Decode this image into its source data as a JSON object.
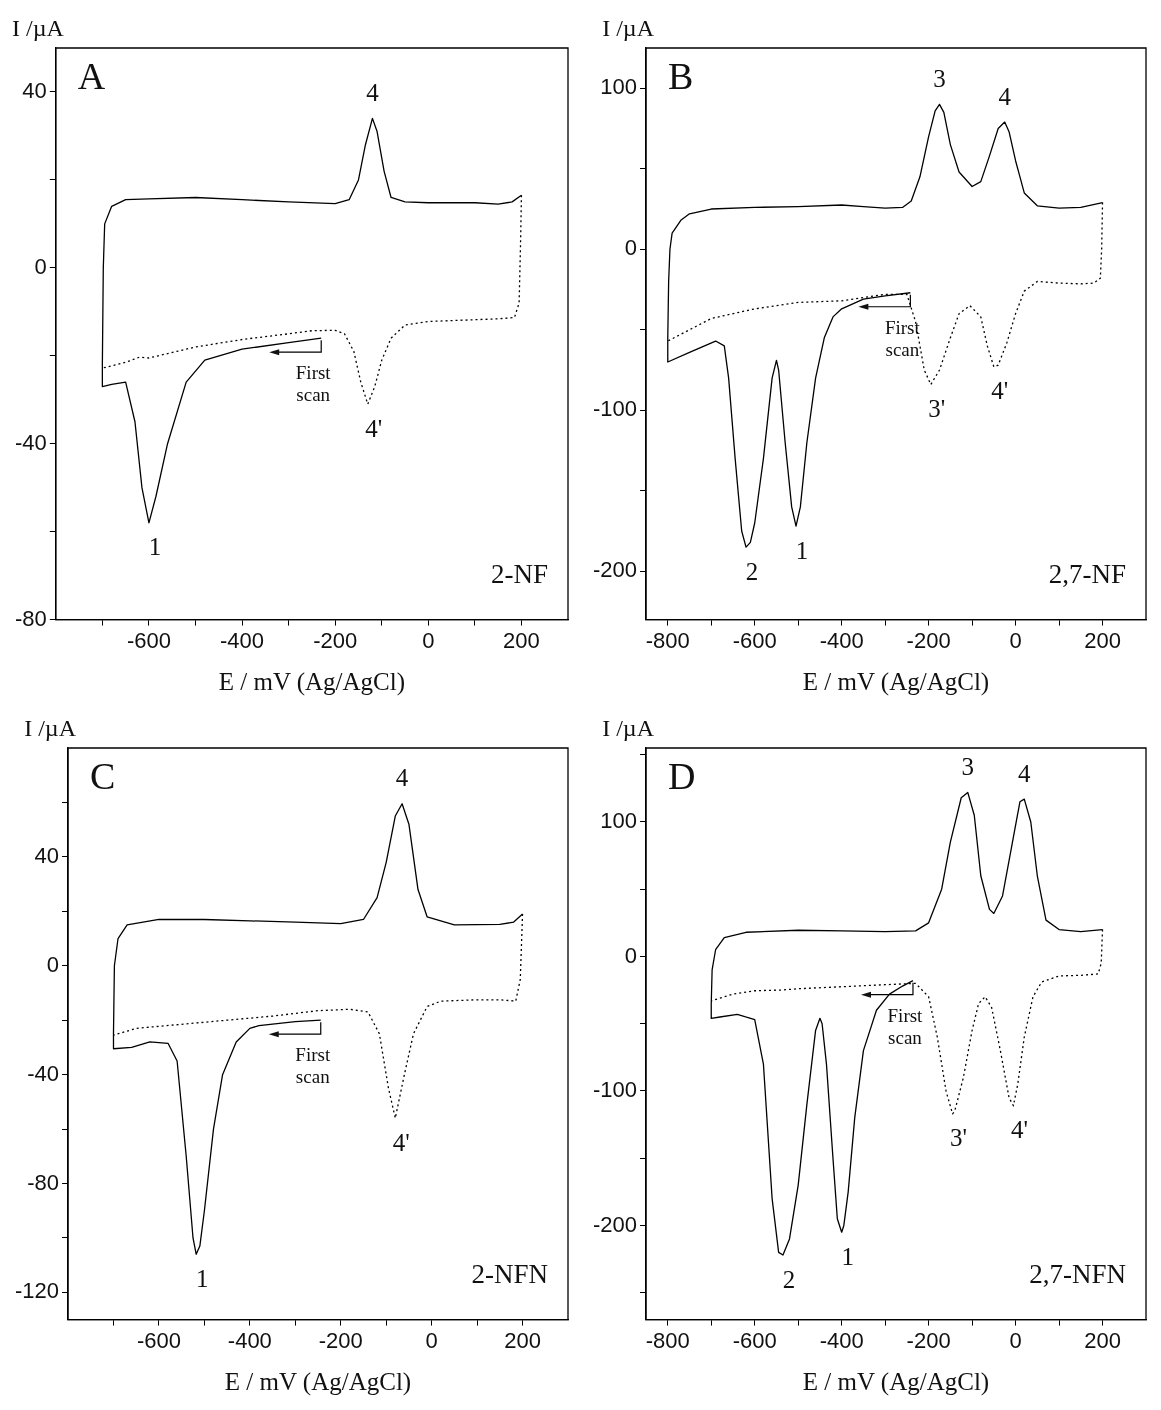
{
  "chart_data": [
    {
      "type": "line",
      "title": "A",
      "subtitle": "2-NF",
      "xlabel": "E / mV (Ag/AgCl)",
      "ylabel": "I /µA",
      "marker": "none",
      "xlim": [
        -800,
        300
      ],
      "xticks": [
        {
          "value": -700,
          "label": null
        },
        -600,
        {
          "value": -500,
          "label": null
        },
        -400,
        {
          "value": -300,
          "label": null
        },
        -200,
        {
          "value": -100,
          "label": null
        },
        0,
        {
          "value": 100,
          "label": null
        },
        200
      ],
      "ylim": [
        -80,
        50
      ],
      "yticks": [
        -80,
        {
          "value": -60,
          "label": null
        },
        -40,
        {
          "value": -20,
          "label": null
        },
        0,
        {
          "value": 20,
          "label": null
        },
        40
      ],
      "series": [
        {
          "color": "#000000",
          "line_style": "solid",
          "x": [
            -230,
            -300,
            -400,
            -480,
            -520,
            -560,
            -585,
            -600,
            -615,
            -630,
            -650,
            -680,
            -700,
            -700,
            -698,
            -695,
            -680,
            -650,
            -600,
            -500,
            -400,
            -300,
            -200,
            -170,
            -150,
            -135,
            -120,
            -110,
            -95,
            -80,
            -50,
            0,
            100,
            150,
            180,
            200
          ],
          "values": [
            -16,
            -17,
            -18.5,
            -21,
            -26,
            -40,
            -52,
            -58,
            -50,
            -35,
            -26,
            -26.5,
            -27,
            -22,
            0,
            10,
            14,
            15.5,
            15.7,
            16,
            15.5,
            15,
            14.6,
            15.5,
            20,
            28,
            34,
            31,
            22,
            16,
            15,
            14.8,
            14.8,
            14.5,
            15,
            16.5
          ]
        },
        {
          "color": "#000000",
          "line_style": "dotted",
          "x": [
            200,
            198,
            195,
            185,
            150,
            100,
            0,
            -50,
            -80,
            -100,
            -115,
            -130,
            -145,
            -160,
            -180,
            -200,
            -250,
            -300,
            -400,
            -500,
            -580,
            -600,
            -620,
            -650,
            -700
          ],
          "values": [
            16.5,
            5,
            -8,
            -11.3,
            -11.6,
            -11.8,
            -12.2,
            -13,
            -16,
            -21,
            -27,
            -31,
            -26,
            -19,
            -15,
            -14.2,
            -14.3,
            -15,
            -16.3,
            -18,
            -20,
            -20.5,
            -20.3,
            -21.5,
            -22.8
          ]
        }
      ],
      "annotations": [
        {
          "text": "4",
          "x": -120,
          "y": 34
        },
        {
          "text": "4'",
          "x": -130,
          "y": -31
        },
        {
          "text": "1",
          "x": -600,
          "y": -58
        },
        "First scan"
      ]
    },
    {
      "type": "line",
      "title": "B",
      "subtitle": "2,7-NF",
      "xlabel": "E / mV (Ag/AgCl)",
      "ylabel": "I /µA",
      "marker": "none",
      "xlim": [
        -850,
        300
      ],
      "xticks": [
        -800,
        {
          "value": -700,
          "label": null
        },
        -600,
        {
          "value": -500,
          "label": null
        },
        -400,
        {
          "value": -300,
          "label": null
        },
        -200,
        {
          "value": -100,
          "label": null
        },
        0,
        {
          "value": 100,
          "label": null
        },
        200
      ],
      "ylim": [
        -230,
        125
      ],
      "yticks": [
        -200,
        {
          "value": -150,
          "label": null
        },
        -100,
        {
          "value": -50,
          "label": null
        },
        0,
        {
          "value": 50,
          "label": null
        },
        100
      ],
      "series": [
        {
          "color": "#000000",
          "line_style": "solid",
          "x": [
            -242,
            -300,
            -350,
            -400,
            -420,
            -440,
            -460,
            -480,
            -495,
            -505,
            -515,
            -530,
            -545,
            -550,
            -560,
            -580,
            -600,
            -610,
            -620,
            -630,
            -645,
            -660,
            -670,
            -690,
            -750,
            -800,
            -800,
            -798,
            -795,
            -790,
            -770,
            -750,
            -700,
            -600,
            -500,
            -400,
            -350,
            -300,
            -260,
            -240,
            -220,
            -200,
            -185,
            -175,
            -165,
            -150,
            -130,
            -100,
            -80,
            -60,
            -40,
            -25,
            -15,
            0,
            20,
            50,
            100,
            150,
            200
          ],
          "values": [
            -27,
            -29,
            -31,
            -37,
            -42,
            -55,
            -80,
            -120,
            -160,
            -172,
            -160,
            -120,
            -75,
            -69,
            -80,
            -130,
            -170,
            -182,
            -185,
            -175,
            -130,
            -80,
            -60,
            -57,
            -64,
            -70,
            -55,
            -20,
            0,
            10,
            18,
            22,
            25,
            26,
            26.5,
            27.5,
            26.5,
            25.5,
            26,
            30,
            45,
            70,
            86,
            90,
            85,
            65,
            48,
            39,
            42,
            58,
            75,
            79,
            73,
            55,
            35,
            27,
            25.5,
            26,
            29
          ]
        },
        {
          "color": "#000000",
          "line_style": "dotted",
          "x": [
            200,
            198,
            195,
            180,
            150,
            100,
            50,
            20,
            0,
            -20,
            -40,
            -50,
            -65,
            -80,
            -105,
            -130,
            -150,
            -175,
            -195,
            -210,
            -230,
            -250,
            -300,
            -400,
            -500,
            -600,
            -700,
            -750,
            -800
          ],
          "values": [
            29,
            0,
            -18,
            -21,
            -21.5,
            -21,
            -20,
            -26,
            -40,
            -58,
            -72,
            -73,
            -60,
            -42,
            -35,
            -40,
            -55,
            -75,
            -84,
            -75,
            -45,
            -28,
            -28,
            -32,
            -33,
            -37,
            -43,
            -50,
            -57
          ]
        }
      ],
      "annotations": [
        {
          "text": "3",
          "x": -175,
          "y": 90
        },
        {
          "text": "4",
          "x": -25,
          "y": 79
        },
        {
          "text": "3'",
          "x": -195,
          "y": -84
        },
        {
          "text": "4'",
          "x": -50,
          "y": -73
        },
        {
          "text": "2",
          "x": -620,
          "y": -185
        },
        {
          "text": "1",
          "x": -505,
          "y": -172
        },
        "First scan"
      ]
    },
    {
      "type": "line",
      "title": "C",
      "subtitle": "2-NFN",
      "xlabel": "E / mV (Ag/AgCl)",
      "ylabel": "I /µA",
      "marker": "none",
      "xlim": [
        -800,
        300
      ],
      "xticks": [
        {
          "value": -700,
          "label": null
        },
        -600,
        {
          "value": -500,
          "label": null
        },
        -400,
        {
          "value": -300,
          "label": null
        },
        -200,
        {
          "value": -100,
          "label": null
        },
        0,
        {
          "value": 100,
          "label": null
        },
        200
      ],
      "ylim": [
        -130,
        80
      ],
      "yticks": [
        -120,
        {
          "value": -100,
          "label": null
        },
        -80,
        {
          "value": -60,
          "label": null
        },
        -40,
        {
          "value": -20,
          "label": null
        },
        0,
        {
          "value": 20,
          "label": null
        },
        40,
        {
          "value": 60,
          "label": null
        }
      ],
      "series": [
        {
          "color": "#000000",
          "line_style": "solid",
          "x": [
            -244,
            -300,
            -380,
            -400,
            -430,
            -460,
            -480,
            -500,
            -510,
            -518,
            -525,
            -540,
            -560,
            -580,
            -620,
            -660,
            -700,
            -700,
            -698,
            -690,
            -670,
            -600,
            -500,
            -400,
            -300,
            -200,
            -150,
            -120,
            -100,
            -80,
            -65,
            -50,
            -30,
            -10,
            50,
            150,
            180,
            200
          ],
          "values": [
            -20,
            -20.5,
            -22,
            -23,
            -28,
            -40,
            -60,
            -90,
            -103,
            -106,
            -100,
            -70,
            -35,
            -28.5,
            -28,
            -30,
            -30.5,
            -25,
            0,
            10,
            15,
            17,
            17,
            16.5,
            16,
            15.5,
            17,
            25,
            38,
            55,
            59.5,
            52,
            28,
            18,
            15,
            15.2,
            16,
            19
          ]
        },
        {
          "color": "#000000",
          "line_style": "dotted",
          "x": [
            200,
            195,
            185,
            150,
            100,
            20,
            -10,
            -40,
            -60,
            -80,
            -95,
            -115,
            -140,
            -180,
            -250,
            -350,
            -450,
            -550,
            -650,
            -700
          ],
          "values": [
            19,
            -5,
            -13,
            -12.5,
            -12.5,
            -13,
            -15,
            -25,
            -40,
            -56,
            -45,
            -25,
            -17,
            -16,
            -16.5,
            -18.5,
            -20,
            -21.5,
            -23,
            -25.5
          ]
        }
      ],
      "annotations": [
        {
          "text": "4",
          "x": -65,
          "y": 59.5
        },
        {
          "text": "4'",
          "x": -80,
          "y": -56
        },
        {
          "text": "1",
          "x": -518,
          "y": -106
        },
        "First scan"
      ]
    },
    {
      "type": "line",
      "title": "D",
      "subtitle": "2,7-NFN",
      "xlabel": "E / mV (Ag/AgCl)",
      "ylabel": "I /µA",
      "marker": "none",
      "xlim": [
        -850,
        300
      ],
      "xticks": [
        -800,
        {
          "value": -700,
          "label": null
        },
        -600,
        {
          "value": -500,
          "label": null
        },
        -400,
        {
          "value": -300,
          "label": null
        },
        -200,
        {
          "value": -100,
          "label": null
        },
        0,
        {
          "value": 100,
          "label": null
        },
        200
      ],
      "ylim": [
        -270,
        155
      ],
      "yticks": [
        {
          "value": -250,
          "label": null
        },
        -200,
        {
          "value": -150,
          "label": null
        },
        -100,
        {
          "value": -50,
          "label": null
        },
        0,
        {
          "value": 50,
          "label": null
        },
        100,
        {
          "value": 150,
          "label": null
        }
      ],
      "series": [
        {
          "color": "#000000",
          "line_style": "solid",
          "x": [
            -236,
            -260,
            -290,
            -320,
            -350,
            -370,
            -385,
            -395,
            -400,
            -410,
            -420,
            -435,
            -445,
            -450,
            -460,
            -480,
            -500,
            -520,
            -535,
            -545,
            -560,
            -580,
            -600,
            -640,
            -680,
            -700,
            -700,
            -698,
            -690,
            -670,
            -620,
            -500,
            -400,
            -300,
            -230,
            -200,
            -170,
            -150,
            -125,
            -110,
            -95,
            -80,
            -60,
            -50,
            -30,
            -10,
            10,
            20,
            35,
            50,
            70,
            100,
            150,
            200
          ],
          "values": [
            -18,
            -22,
            -28,
            -40,
            -70,
            -120,
            -175,
            -200,
            -205,
            -195,
            -150,
            -80,
            -50,
            -46,
            -55,
            -110,
            -170,
            -210,
            -222,
            -220,
            -180,
            -80,
            -47,
            -43,
            -45,
            -46,
            -35,
            -10,
            5,
            14,
            18,
            19.5,
            19,
            18.5,
            19,
            25,
            50,
            85,
            118,
            122,
            105,
            60,
            35,
            32,
            45,
            80,
            115,
            117,
            100,
            60,
            27,
            20,
            18.5,
            20
          ]
        },
        {
          "color": "#000000",
          "line_style": "dotted",
          "x": [
            200,
            197,
            190,
            150,
            100,
            60,
            40,
            20,
            5,
            -5,
            -15,
            -35,
            -55,
            -70,
            -85,
            -100,
            -120,
            -140,
            -145,
            -160,
            -180,
            -200,
            -230,
            -300,
            -400,
            -500,
            -540,
            -600,
            -650,
            -700
          ],
          "values": [
            20,
            -5,
            -13,
            -14,
            -14.5,
            -19,
            -30,
            -60,
            -95,
            -111,
            -105,
            -70,
            -38,
            -30,
            -35,
            -55,
            -90,
            -115,
            -117,
            -100,
            -60,
            -30,
            -20,
            -21,
            -22.5,
            -24,
            -25,
            -25.5,
            -28,
            -33
          ]
        }
      ],
      "annotations": [
        {
          "text": "3",
          "x": -110,
          "y": 122
        },
        {
          "text": "4",
          "x": 20,
          "y": 117
        },
        {
          "text": "3'",
          "x": -145,
          "y": -117
        },
        {
          "text": "4'",
          "x": -5,
          "y": -111
        },
        {
          "text": "2",
          "x": -535,
          "y": -222
        },
        {
          "text": "1",
          "x": -400,
          "y": -205
        },
        "First scan"
      ]
    }
  ]
}
